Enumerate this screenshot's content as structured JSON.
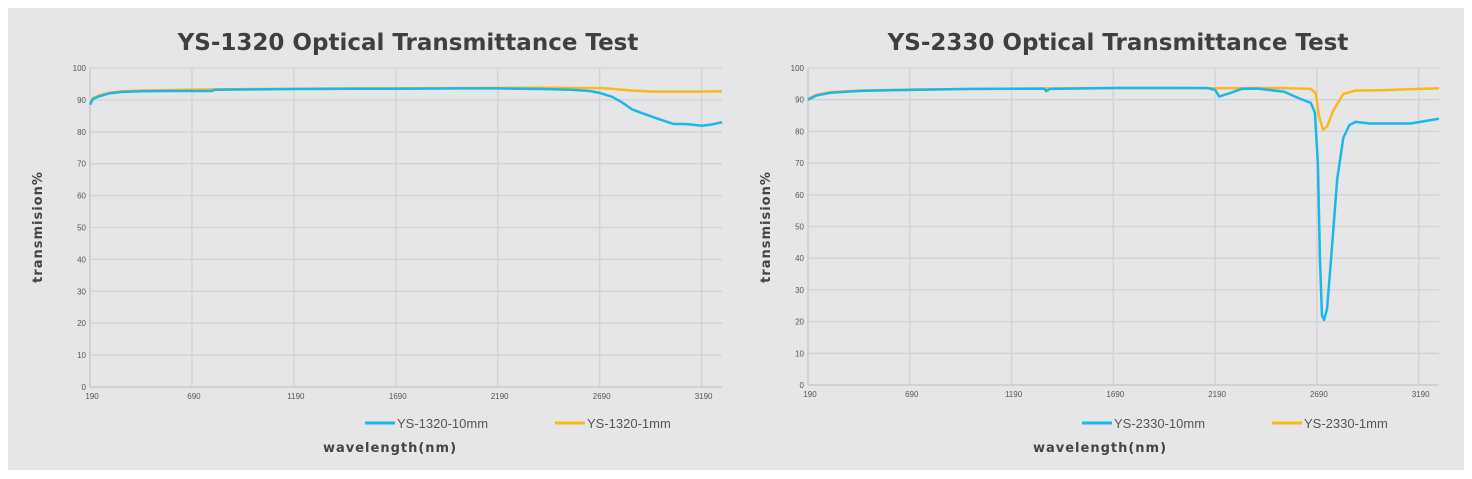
{
  "colors": {
    "s10mm": "#1ab8e8",
    "s1mm": "#fbb81b",
    "grid": "#d2d2d4",
    "bg": "#e6e6e8"
  },
  "chart_data": [
    {
      "type": "line",
      "title": "YS-1320  Optical Transmittance Test",
      "xlabel": "wavelength(nm)",
      "ylabel": "transmision%",
      "xlim": [
        190,
        3290
      ],
      "ylim": [
        0,
        100
      ],
      "grid": true,
      "legend": "bottom",
      "xticks": [
        "190",
        "690",
        "1190",
        "1690",
        "2190",
        "2690",
        "3190"
      ],
      "yticks": [
        "0",
        "10",
        "20",
        "30",
        "40",
        "50",
        "60",
        "70",
        "80",
        "90",
        "100"
      ],
      "series": [
        {
          "name": "YS-1320-10mm",
          "color": "#1ab8e8",
          "x": [
            190,
            205,
            230,
            280,
            350,
            450,
            600,
            790,
            800,
            1000,
            1200,
            1500,
            1700,
            2000,
            2190,
            2400,
            2550,
            2640,
            2690,
            2750,
            2800,
            2850,
            2900,
            2980,
            3050,
            3120,
            3190,
            3240,
            3290
          ],
          "y": [
            88.5,
            90.3,
            91,
            92,
            92.5,
            92.7,
            92.8,
            92.8,
            93.2,
            93.3,
            93.4,
            93.5,
            93.5,
            93.6,
            93.6,
            93.4,
            93.2,
            92.8,
            92.2,
            91,
            89.2,
            87,
            85.8,
            84,
            82.5,
            82.4,
            81.9,
            82.3,
            83
          ]
        },
        {
          "name": "YS-1320-1mm",
          "color": "#fbb81b",
          "x": [
            190,
            205,
            230,
            280,
            350,
            450,
            600,
            800,
            1000,
            1500,
            2000,
            2400,
            2700,
            2760,
            2850,
            2950,
            3050,
            3190,
            3290
          ],
          "y": [
            89,
            90.6,
            91.3,
            92.2,
            92.7,
            93,
            93.1,
            93.3,
            93.4,
            93.6,
            93.7,
            93.8,
            93.7,
            93.4,
            92.9,
            92.6,
            92.6,
            92.6,
            92.7
          ]
        }
      ]
    },
    {
      "type": "line",
      "title": "YS-2330  Optical Transmittance Test",
      "xlabel": "wavelength(nm)",
      "ylabel": "transmision%",
      "xlim": [
        190,
        3290
      ],
      "ylim": [
        0,
        100
      ],
      "grid": true,
      "legend": "bottom",
      "xticks": [
        "190",
        "690",
        "1190",
        "1690",
        "2190",
        "2690",
        "3190"
      ],
      "yticks": [
        "0",
        "10",
        "20",
        "30",
        "40",
        "50",
        "60",
        "70",
        "80",
        "90",
        "100"
      ],
      "series": [
        {
          "name": "YS-2330-10mm",
          "color": "#1ab8e8",
          "x": [
            190,
            230,
            300,
            450,
            700,
            1000,
            1350,
            1360,
            1380,
            1700,
            2150,
            2190,
            2210,
            2260,
            2320,
            2400,
            2530,
            2600,
            2660,
            2680,
            2695,
            2705,
            2715,
            2725,
            2740,
            2760,
            2790,
            2820,
            2850,
            2880,
            2950,
            3050,
            3150,
            3290
          ],
          "y": [
            90,
            91.3,
            92.2,
            92.8,
            93.1,
            93.4,
            93.5,
            92.7,
            93.4,
            93.7,
            93.7,
            93.1,
            91,
            92,
            93.4,
            93.5,
            92.5,
            90.5,
            89,
            86,
            70,
            40,
            22,
            20.5,
            24,
            40,
            65,
            78,
            82,
            83,
            82.5,
            82.5,
            82.5,
            84
          ]
        },
        {
          "name": "YS-2330-1mm",
          "color": "#fbb81b",
          "x": [
            190,
            230,
            300,
            450,
            700,
            1200,
            1700,
            2190,
            2500,
            2660,
            2685,
            2700,
            2720,
            2740,
            2770,
            2820,
            2880,
            3000,
            3290
          ],
          "y": [
            90.3,
            91.5,
            92.4,
            92.9,
            93.2,
            93.5,
            93.7,
            93.6,
            93.7,
            93.4,
            92,
            85,
            80.5,
            81.5,
            86.5,
            91.8,
            92.9,
            93,
            93.6
          ]
        }
      ]
    }
  ]
}
